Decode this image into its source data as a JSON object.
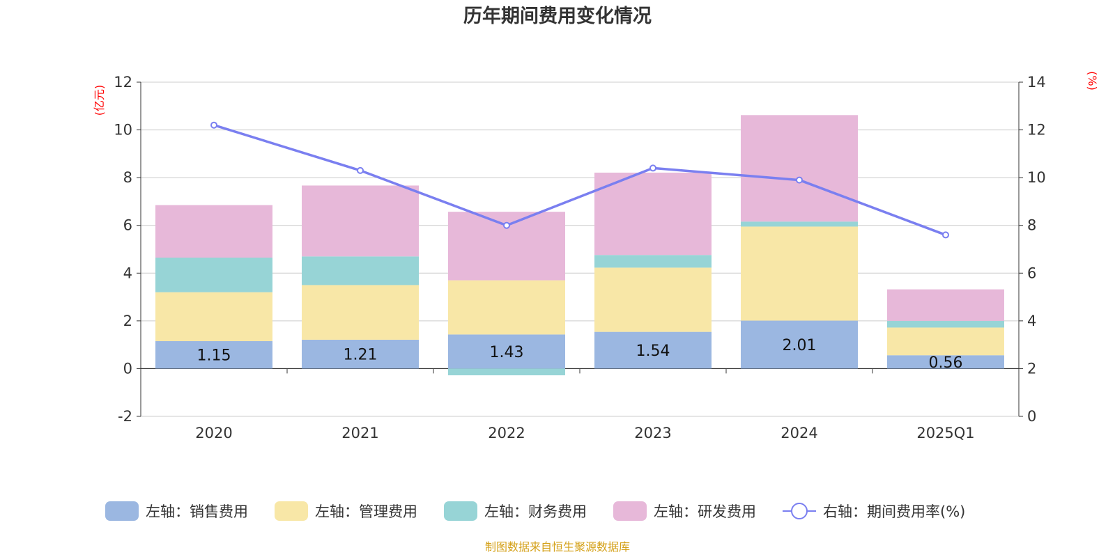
{
  "chart_data": {
    "type": "bar",
    "title": "历年期间费用变化情况",
    "categories": [
      "2020",
      "2021",
      "2022",
      "2023",
      "2024",
      "2025Q1"
    ],
    "left_axis": {
      "unit": "(亿元)",
      "ylim": [
        -2,
        12
      ],
      "ticks": [
        "-2",
        "0",
        "2",
        "4",
        "6",
        "8",
        "10",
        "12"
      ]
    },
    "right_axis": {
      "unit": "(%)",
      "ylim": [
        0,
        14
      ],
      "ticks": [
        "0",
        "2",
        "4",
        "6",
        "8",
        "10",
        "12",
        "14"
      ]
    },
    "series": [
      {
        "name": "左轴：销售费用",
        "type": "bar",
        "axis": "left",
        "color": "#9bb7e1",
        "values": [
          1.15,
          1.21,
          1.43,
          1.54,
          2.01,
          0.56
        ],
        "labels": [
          "1.15",
          "1.21",
          "1.43",
          "1.54",
          "2.01",
          "0.56"
        ]
      },
      {
        "name": "左轴：管理费用",
        "type": "bar",
        "axis": "left",
        "color": "#f8e7a7",
        "values": [
          2.05,
          2.29,
          2.27,
          2.69,
          3.94,
          1.16
        ]
      },
      {
        "name": "左轴：财务费用",
        "type": "bar",
        "axis": "left",
        "color": "#97d4d6",
        "values": [
          1.45,
          1.2,
          -0.28,
          0.53,
          0.21,
          0.28
        ]
      },
      {
        "name": "左轴：研发费用",
        "type": "bar",
        "axis": "left",
        "color": "#e7b8d9",
        "values": [
          2.2,
          2.97,
          2.87,
          3.45,
          4.46,
          1.32
        ]
      },
      {
        "name": "右轴：期间费用率(%)",
        "type": "line",
        "axis": "right",
        "color": "#7a7ff0",
        "values": [
          12.2,
          10.3,
          8.0,
          10.4,
          9.9,
          7.6
        ]
      }
    ],
    "grid": true,
    "legend_position": "bottom"
  },
  "unit_color": "#ff0000",
  "source_color": "#d4a017",
  "source_text": "制图数据来自恒生聚源数据库"
}
